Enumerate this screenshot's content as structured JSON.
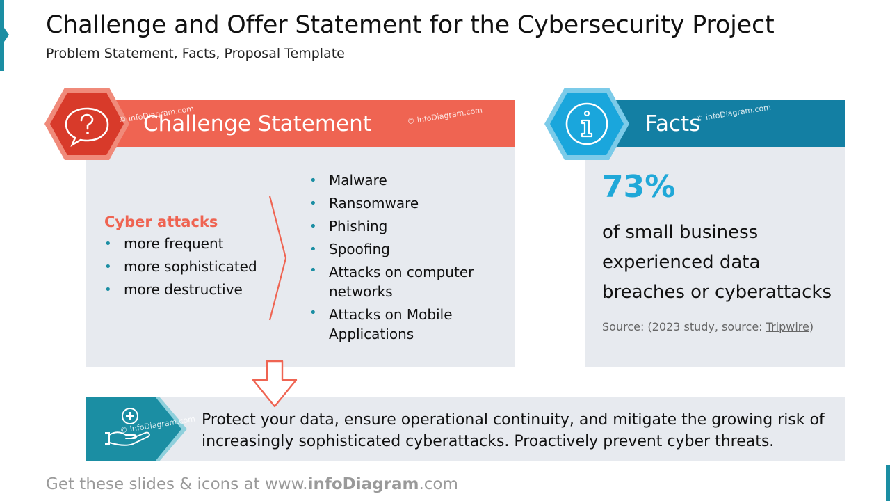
{
  "header": {
    "title": "Challenge and Offer Statement for the Cybersecurity Project",
    "subtitle": "Problem Statement, Facts, Proposal Template"
  },
  "challenge": {
    "title": "Challenge Statement",
    "icon": "question-bubble-icon",
    "heading": "Cyber attacks",
    "features": [
      "more frequent",
      "more sophisticated",
      "more destructive"
    ],
    "attacks": [
      "Malware",
      "Ransomware",
      "Phishing",
      "Spoofing",
      "Attacks on computer networks",
      "Attacks on Mobile Applications"
    ]
  },
  "facts": {
    "title": "Facts",
    "icon": "info-icon",
    "stat": "73%",
    "stat_text": "of small business experienced data breaches or cyberattacks",
    "source_prefix": "Source: (2023 study, source: ",
    "source_link": "Tripwire",
    "source_suffix": ")"
  },
  "offer": {
    "icon": "hand-plus-icon",
    "text": "Protect your data, ensure operational continuity, and mitigate the growing risk of increasingly sophisticated cyberattacks. Proactively prevent cyber threats."
  },
  "watermark": "© infoDiagram.com",
  "footer": {
    "prefix": "Get these slides & icons at www.",
    "brand": "infoDiagram",
    "suffix": ".com"
  },
  "colors": {
    "challenge": "#ef6452",
    "challenge_dark": "#d83a2a",
    "facts": "#137fa3",
    "facts_light": "#20a8d8",
    "offer": "#1b8ea3",
    "panel": "#e7eaef"
  }
}
